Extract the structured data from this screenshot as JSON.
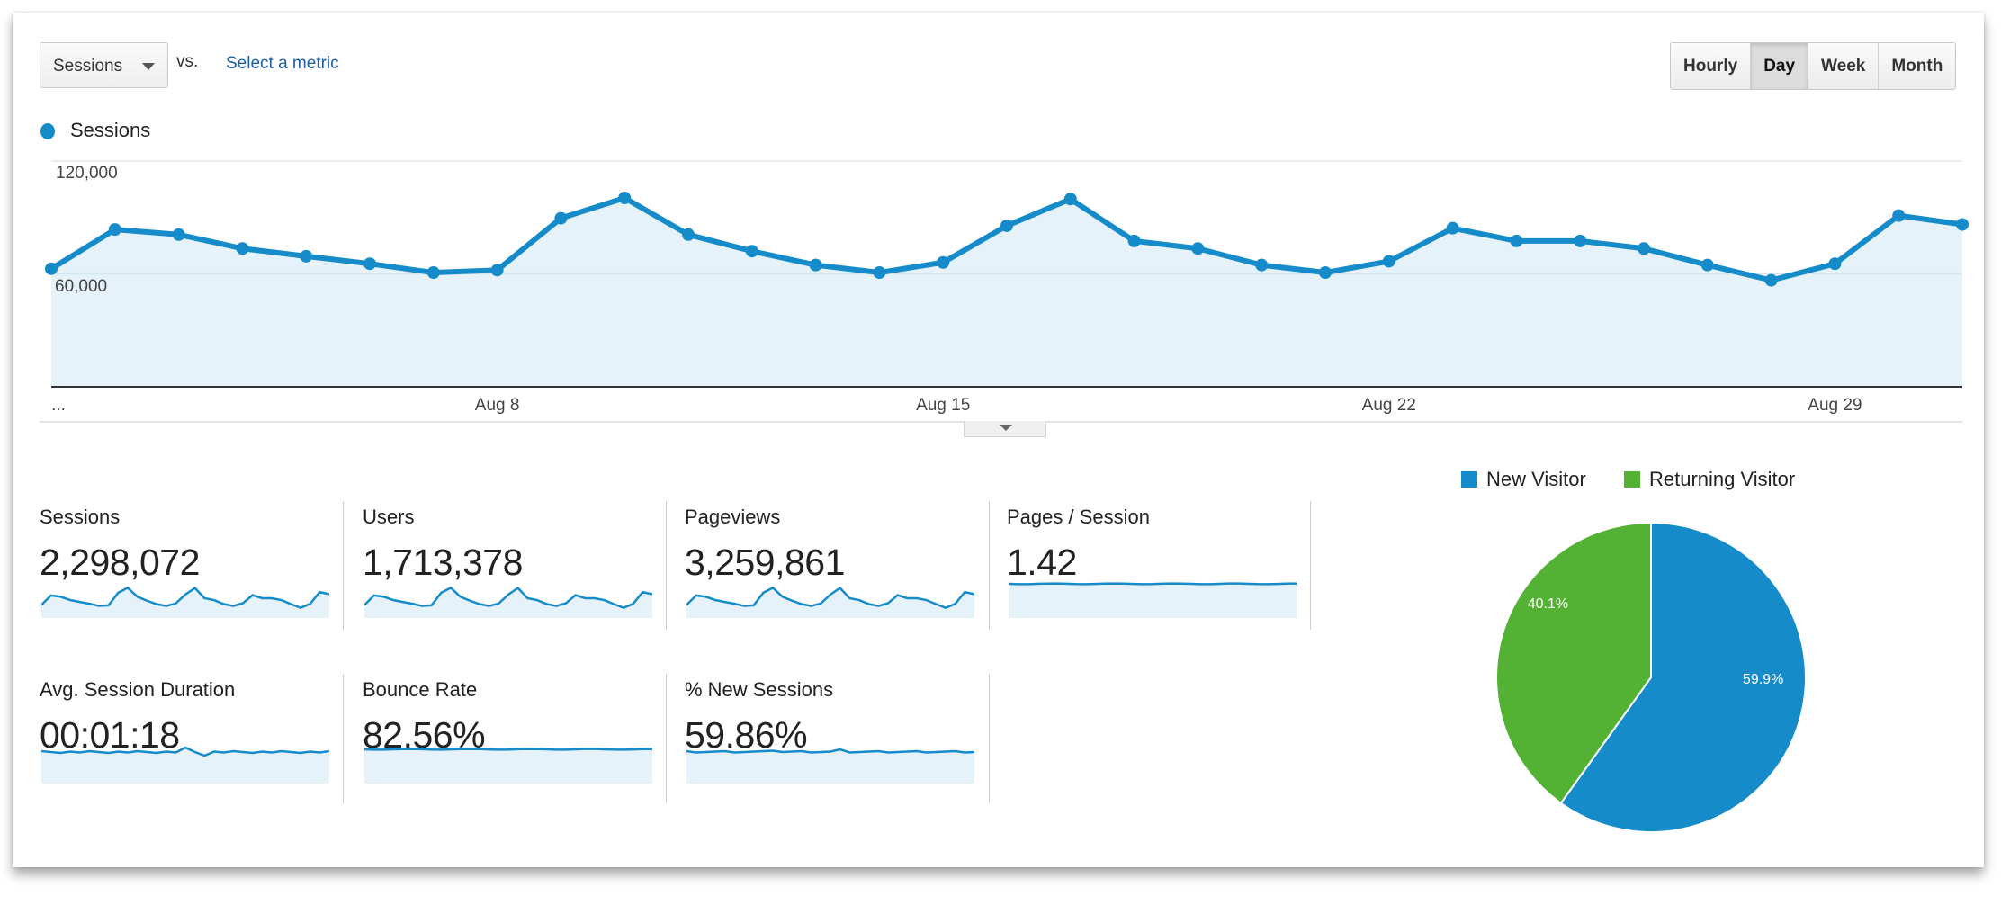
{
  "toolbar": {
    "metric_select": "Sessions",
    "vs_label": "vs.",
    "compare_link": "Select a metric",
    "granularity": [
      {
        "label": "Hourly",
        "active": false
      },
      {
        "label": "Day",
        "active": true
      },
      {
        "label": "Week",
        "active": false
      },
      {
        "label": "Month",
        "active": false
      }
    ]
  },
  "colors": {
    "accent": "#168bca",
    "area_fill": "#e5f2f9",
    "new_visitor": "#168bca",
    "returning_visitor": "#53b233",
    "link": "#1a5fa8"
  },
  "chart_data": [
    {
      "type": "area",
      "legend": "Sessions",
      "y_ticks": [
        "120,000",
        "60,000"
      ],
      "ylim": [
        0,
        120000
      ],
      "x_ticks": [
        {
          "label": "...",
          "day": 1
        },
        {
          "label": "Aug 8",
          "day": 8
        },
        {
          "label": "Aug 15",
          "day": 15
        },
        {
          "label": "Aug 22",
          "day": 22
        },
        {
          "label": "Aug 29",
          "day": 29
        }
      ],
      "x": [
        "Aug 1",
        "Aug 2",
        "Aug 3",
        "Aug 4",
        "Aug 5",
        "Aug 6",
        "Aug 7",
        "Aug 8",
        "Aug 9",
        "Aug 10",
        "Aug 11",
        "Aug 12",
        "Aug 13",
        "Aug 14",
        "Aug 15",
        "Aug 16",
        "Aug 17",
        "Aug 18",
        "Aug 19",
        "Aug 20",
        "Aug 21",
        "Aug 22",
        "Aug 23",
        "Aug 24",
        "Aug 25",
        "Aug 26",
        "Aug 27",
        "Aug 28",
        "Aug 29",
        "Aug 30",
        "Aug 31"
      ],
      "series": [
        {
          "name": "Sessions",
          "values": [
            62700,
            83600,
            80900,
            73500,
            69400,
            65400,
            60700,
            62000,
            89600,
            100400,
            80900,
            72100,
            64700,
            60700,
            66100,
            85600,
            99800,
            77500,
            73500,
            64700,
            60700,
            66700,
            84300,
            77500,
            77500,
            73500,
            64700,
            56600,
            65400,
            91000,
            86300
          ]
        }
      ],
      "grid": true
    },
    {
      "type": "pie",
      "legend_position": "top",
      "slices": [
        {
          "label": "New Visitor",
          "value": 59.9,
          "text": "59.9%"
        },
        {
          "label": "Returning Visitor",
          "value": 40.1,
          "text": "40.1%"
        }
      ]
    }
  ],
  "scorecards": [
    {
      "label": "Sessions",
      "value": "2,298,072"
    },
    {
      "label": "Users",
      "value": "1,713,378"
    },
    {
      "label": "Pageviews",
      "value": "3,259,861"
    },
    {
      "label": "Pages / Session",
      "value": "1.42"
    },
    {
      "label": "Avg. Session Duration",
      "value": "00:01:18"
    },
    {
      "label": "Bounce Rate",
      "value": "82.56%"
    },
    {
      "label": "% New Sessions",
      "value": "59.86%"
    }
  ]
}
